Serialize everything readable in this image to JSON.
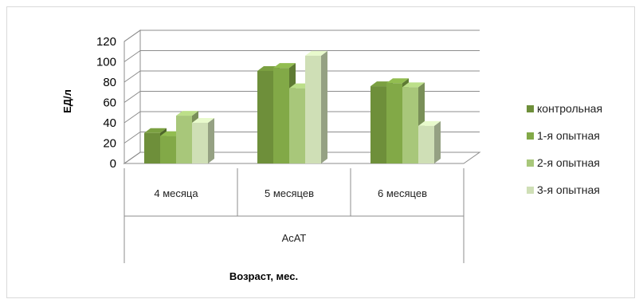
{
  "chart_data": {
    "type": "bar",
    "style": "3d-clustered-column",
    "categories": [
      "4 месяца",
      "5 месяцев",
      "6 месяцев"
    ],
    "group_label": "АсАТ",
    "series": [
      {
        "name": "контрольная",
        "values": [
          30,
          91,
          76
        ],
        "color": "#6e8f3a"
      },
      {
        "name": "1-я опытная",
        "values": [
          27,
          94,
          79
        ],
        "color": "#82a947"
      },
      {
        "name": "2-я опытная",
        "values": [
          47,
          74,
          75
        ],
        "color": "#a8c77a"
      },
      {
        "name": "3-я опытная",
        "values": [
          40,
          106,
          37
        ],
        "color": "#cfdfb6"
      }
    ],
    "xlabel": "Возраст, мес.",
    "ylabel": "ЕД/л",
    "ylim": [
      0,
      120
    ],
    "yticks": [
      0,
      20,
      40,
      60,
      80,
      100,
      120
    ],
    "grid": true,
    "legend_position": "right"
  }
}
